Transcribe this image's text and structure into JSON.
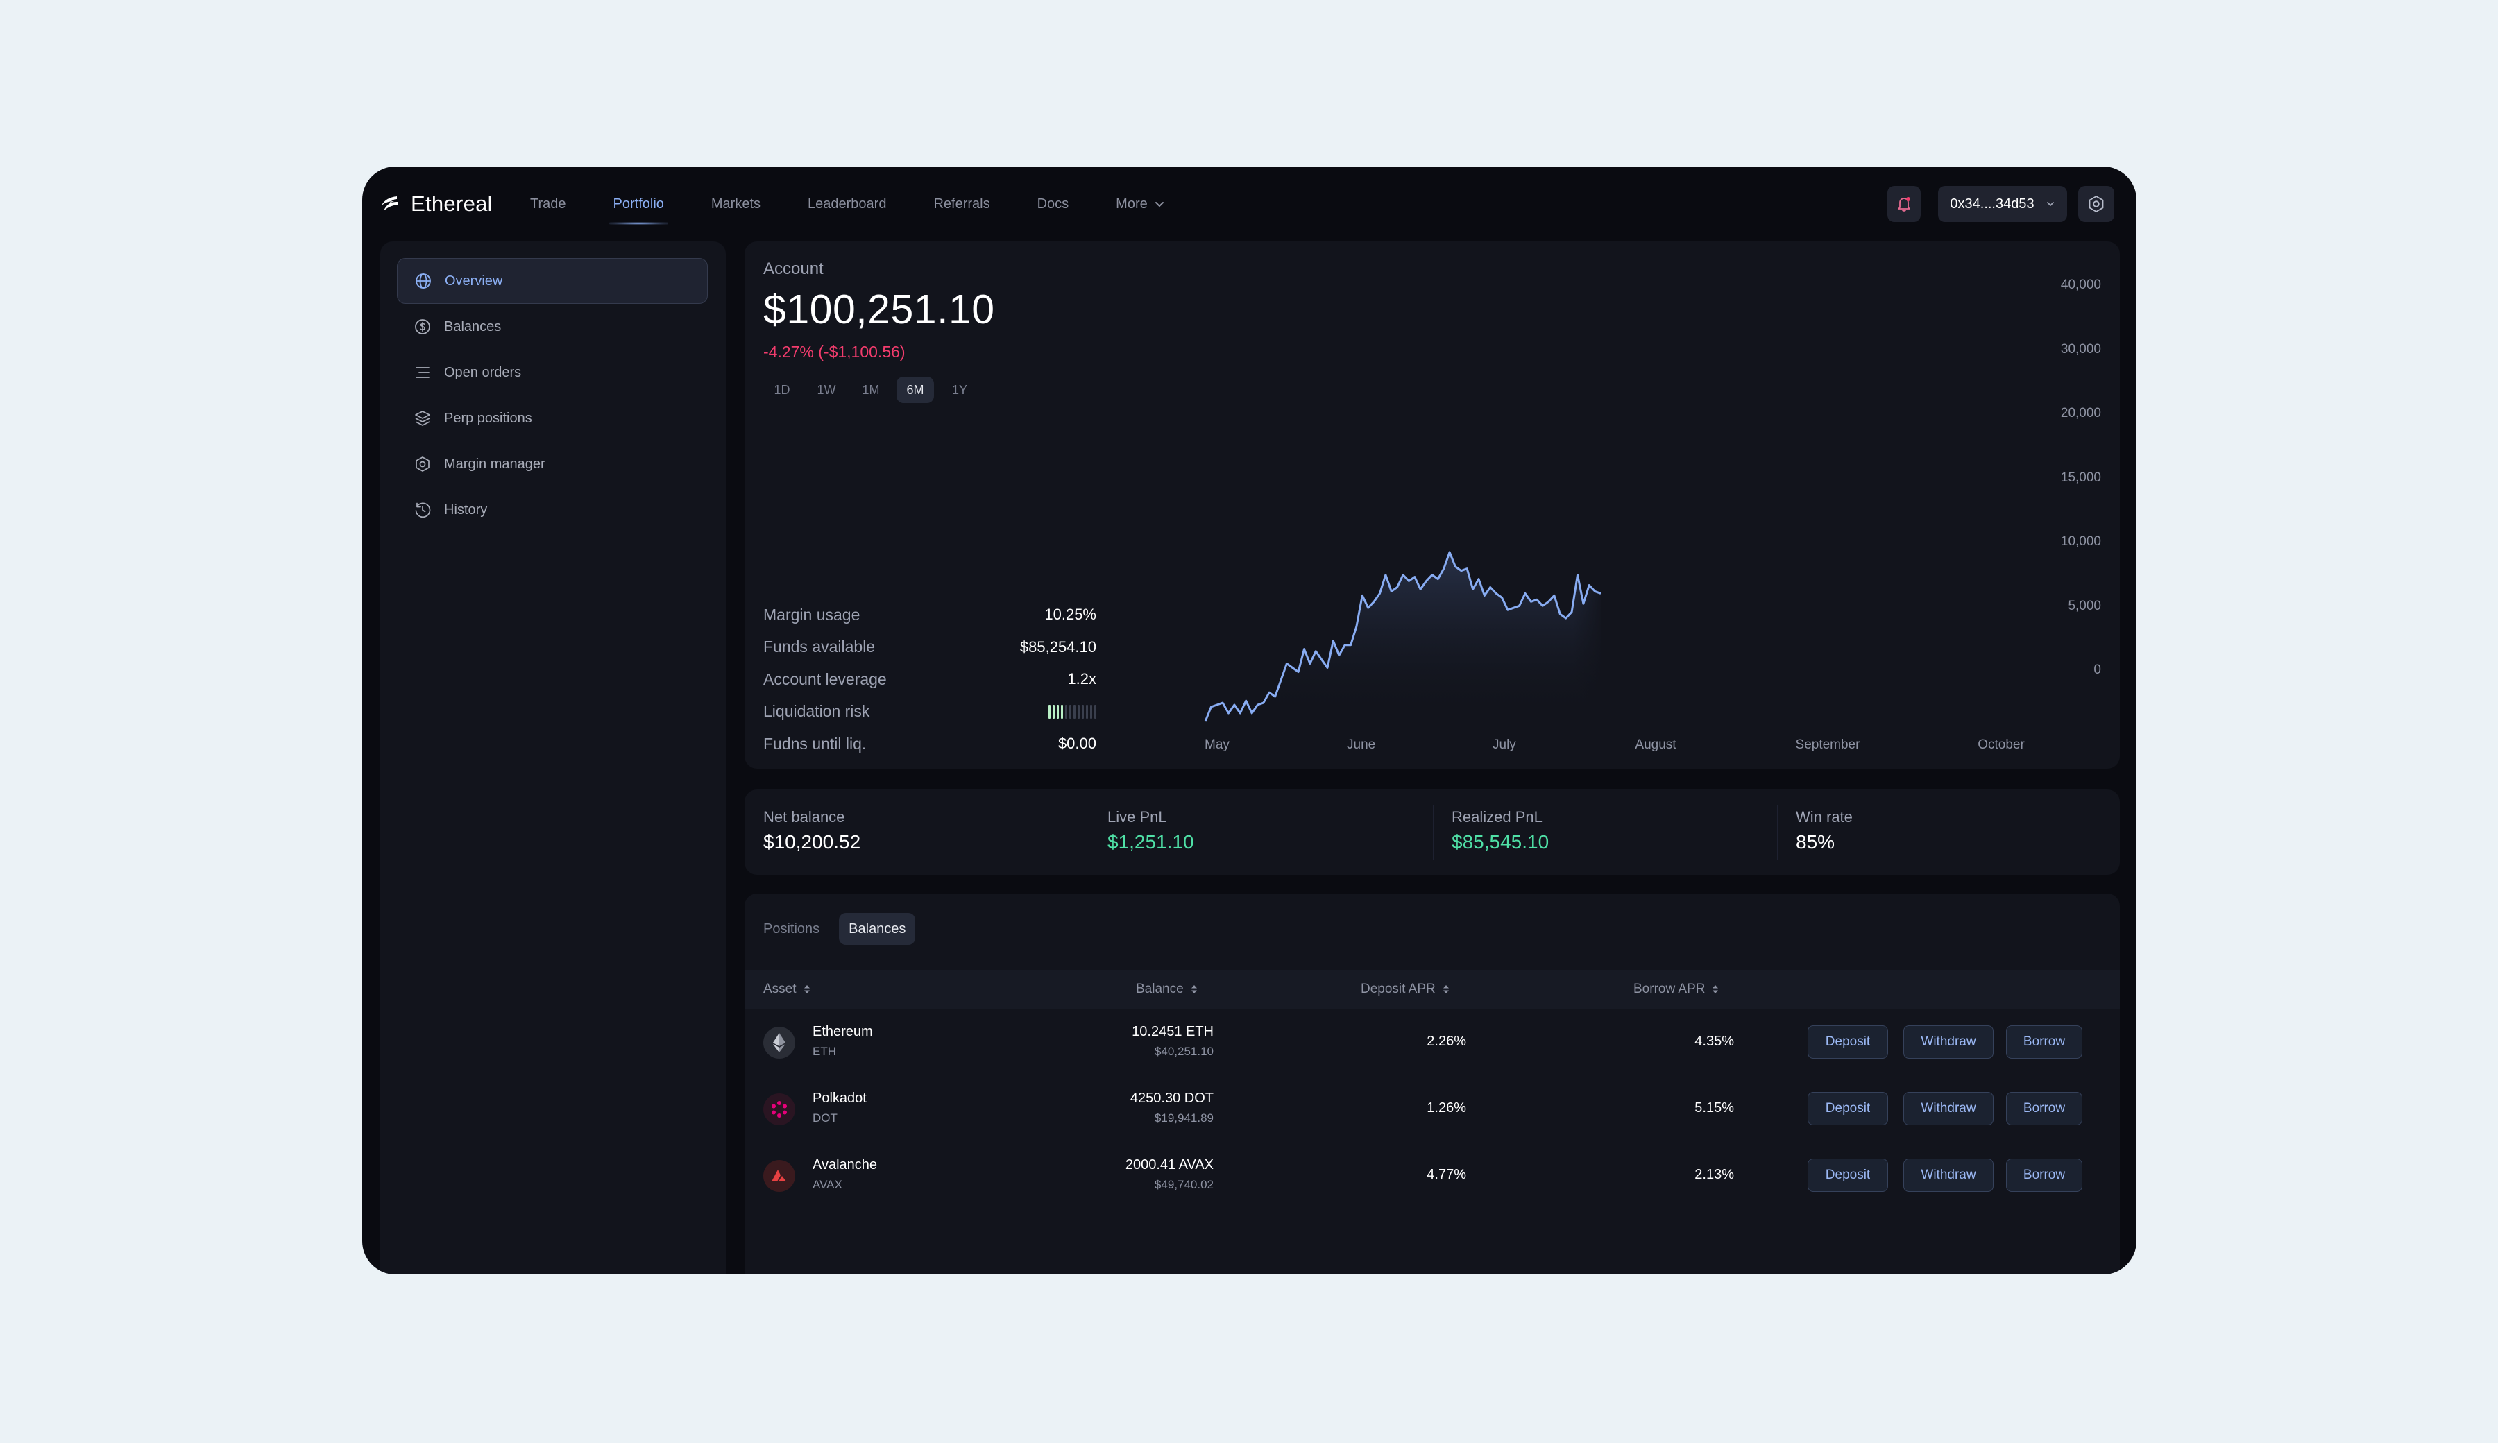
{
  "app": {
    "name": "Ethereal"
  },
  "nav": {
    "items": [
      "Trade",
      "Portfolio",
      "Markets",
      "Leaderboard",
      "Referrals",
      "Docs"
    ],
    "more_label": "More",
    "active": "Portfolio"
  },
  "wallet": {
    "address": "0x34....34d53"
  },
  "sidebar": {
    "items": [
      {
        "label": "Overview",
        "icon": "globe-icon",
        "active": true
      },
      {
        "label": "Balances",
        "icon": "dollar-circle-icon",
        "active": false
      },
      {
        "label": "Open orders",
        "icon": "list-icon",
        "active": false
      },
      {
        "label": "Perp positions",
        "icon": "layers-icon",
        "active": false
      },
      {
        "label": "Margin manager",
        "icon": "hexagon-icon",
        "active": false
      },
      {
        "label": "History",
        "icon": "history-icon",
        "active": false
      }
    ]
  },
  "account": {
    "label": "Account",
    "value": "$100,251.10",
    "change": "-4.27% (-$1,100.56)",
    "ranges": [
      "1D",
      "1W",
      "1M",
      "6M",
      "1Y"
    ],
    "active_range": "6M",
    "stats": [
      {
        "label": "Margin usage",
        "value": "10.25%"
      },
      {
        "label": "Funds available",
        "value": "$85,254.10"
      },
      {
        "label": "Account leverage",
        "value": "1.2x"
      },
      {
        "label": "Liquidation risk",
        "value": "",
        "risk_level": 0.3
      },
      {
        "label": "Fudns until liq.",
        "value": "$0.00"
      }
    ]
  },
  "chart_data": {
    "type": "area",
    "title": "",
    "xlabel": "",
    "ylabel": "",
    "x_ticks": [
      "May",
      "June",
      "July",
      "August",
      "September",
      "October"
    ],
    "y_ticks": [
      "40,000",
      "30,000",
      "20,000",
      "15,000",
      "10,000",
      "5,000",
      "0"
    ],
    "grid": false,
    "line_color": "#88acf2",
    "series": [
      {
        "values": [
          -3000,
          500,
          1000,
          1500,
          -1000,
          1000,
          -1000,
          2000,
          -1000,
          1000,
          1500,
          4000,
          3000,
          7000,
          11000,
          10000,
          9000,
          14500,
          11000,
          14000,
          12000,
          10000,
          16500,
          13000,
          15500,
          15500,
          20000,
          27500,
          24500,
          26000,
          28000,
          32500,
          28500,
          29500,
          32500,
          31000,
          32000,
          29000,
          31000,
          32500,
          31500,
          34000,
          38000,
          34500,
          33500,
          34000,
          29000,
          31500,
          27500,
          29500,
          28000,
          27000,
          24000,
          24500,
          25000,
          28000,
          26000,
          26500,
          25000,
          26000,
          27500,
          23000,
          22000,
          23500,
          32500,
          25500,
          30000,
          28500,
          28000
        ]
      }
    ]
  },
  "summary": [
    {
      "label": "Net balance",
      "value": "$10,200.52",
      "color": "#ffffff"
    },
    {
      "label": "Live PnL",
      "value": "$1,251.10",
      "color": "#4fe0a6"
    },
    {
      "label": "Realized PnL",
      "value": "$85,545.10",
      "color": "#4fe0a6"
    },
    {
      "label": "Win rate",
      "value": "85%",
      "color": "#ffffff"
    }
  ],
  "table": {
    "tabs": [
      "Positions",
      "Balances"
    ],
    "active_tab": "Balances",
    "columns": [
      "Asset",
      "Balance",
      "Deposit APR",
      "Borrow APR"
    ],
    "actions": [
      "Deposit",
      "Withdraw",
      "Borrow"
    ],
    "rows": [
      {
        "name": "Ethereum",
        "symbol": "ETH",
        "icon": "ethereum-icon",
        "balance": "10.2451 ETH",
        "balance_usd": "$40,251.10",
        "deposit_apr": "2.26%",
        "borrow_apr": "4.35%"
      },
      {
        "name": "Polkadot",
        "symbol": "DOT",
        "icon": "polkadot-icon",
        "balance": "4250.30 DOT",
        "balance_usd": "$19,941.89",
        "deposit_apr": "1.26%",
        "borrow_apr": "5.15%"
      },
      {
        "name": "Avalanche",
        "symbol": "AVAX",
        "icon": "avalanche-icon",
        "balance": "2000.41 AVAX",
        "balance_usd": "$49,740.02",
        "deposit_apr": "4.77%",
        "borrow_apr": "2.13%"
      }
    ]
  }
}
